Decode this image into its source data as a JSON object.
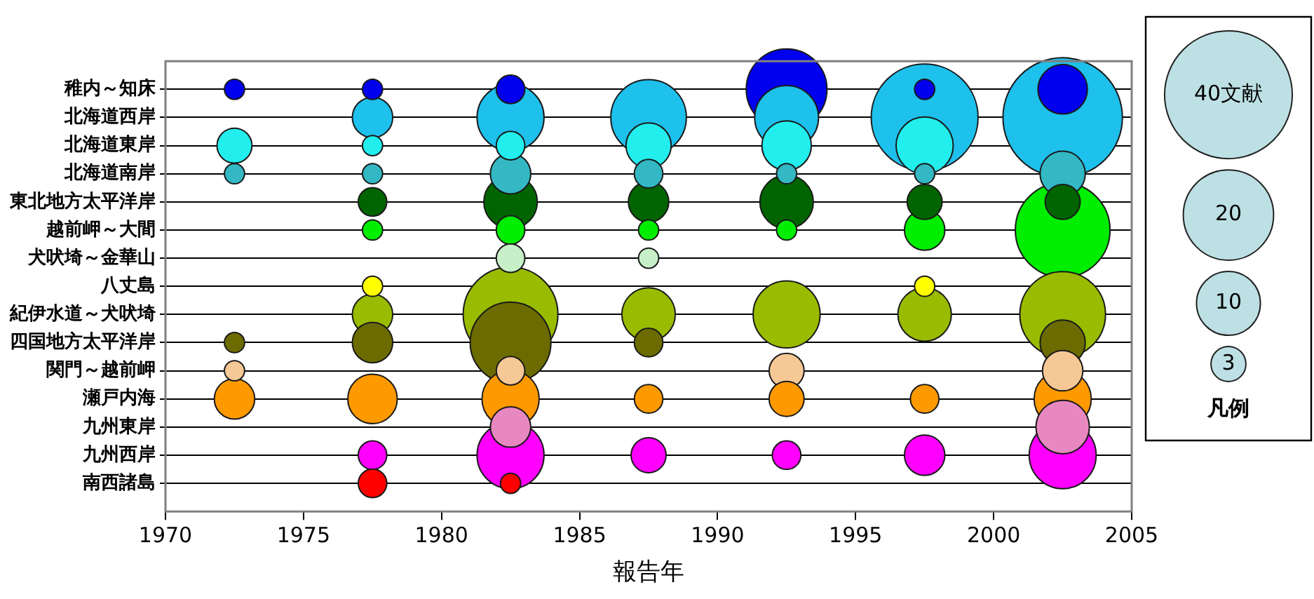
{
  "chart_data": {
    "type": "bubble",
    "orientation": "horizontal",
    "xlabel": "報告年",
    "legend_title": "凡例",
    "xlim": [
      1970,
      2005
    ],
    "xticks": [
      1970,
      1975,
      1980,
      1985,
      1990,
      1995,
      2000,
      2005
    ],
    "grid": "y",
    "size_legend": [
      {
        "value": 40,
        "label": "40文献"
      },
      20,
      10,
      3
    ],
    "categories": [
      "稚内～知床",
      "北海道西岸",
      "北海道東岸",
      "北海道南岸",
      "東北地方太平洋岸",
      "越前岬～大間",
      "犬吠埼～金華山",
      "八丈島",
      "紀伊水道～犬吠埼",
      "四国地方太平洋岸",
      "関門～越前岬",
      "瀬戸内海",
      "九州東岸",
      "九州西岸",
      "南西諸島"
    ],
    "series": [
      {
        "values": [
          1972.5,
          null,
          1972.5,
          1972.5,
          null,
          null,
          null,
          null,
          null,
          1972.5,
          1972.5,
          1972.5,
          null,
          null,
          null
        ],
        "sizes": [
          1,
          null,
          3,
          1,
          null,
          null,
          null,
          null,
          null,
          1,
          1,
          4,
          null,
          null,
          null
        ],
        "colors": [
          "#0000ee",
          null,
          "#22eeee",
          "#33b8c4",
          null,
          null,
          null,
          null,
          null,
          "#6b6b00",
          "#f5c896",
          "#ff9900",
          null,
          null,
          null
        ]
      },
      {
        "values": [
          1977.5,
          1977.5,
          1977.5,
          1977.5,
          1977.5,
          1977.5,
          null,
          1977.5,
          1977.5,
          1977.5,
          null,
          1977.5,
          null,
          1977.5,
          1977.5
        ],
        "sizes": [
          1,
          4,
          1,
          1,
          2,
          1,
          null,
          1,
          4,
          4,
          null,
          6,
          null,
          2,
          2
        ],
        "colors": [
          "#0000ee",
          "#1ec0ec",
          "#22eeee",
          "#33b8c4",
          "#006400",
          "#00ee00",
          null,
          "#ffff00",
          "#99bb00",
          "#6b6b00",
          null,
          "#ff9900",
          null,
          "#ff00ff",
          "#ff0000"
        ]
      },
      {
        "values": [
          1982.5,
          1982.5,
          1982.5,
          1982.5,
          1982.5,
          1982.5,
          1982.5,
          null,
          1982.5,
          1982.5,
          1982.5,
          1982.5,
          1982.5,
          1982.5,
          1982.5
        ],
        "sizes": [
          2,
          11,
          2,
          4,
          7,
          2,
          2,
          null,
          22,
          16,
          2,
          8,
          4,
          11,
          1
        ],
        "colors": [
          "#0000ee",
          "#1ec0ec",
          "#22eeee",
          "#33b8c4",
          "#006400",
          "#00ee00",
          "#c8f0c8",
          null,
          "#99bb00",
          "#6b6b00",
          "#f5c896",
          "#ff9900",
          "#e888c0",
          "#ff00ff",
          "#ff0000"
        ]
      },
      {
        "values": [
          null,
          1987.5,
          1987.5,
          1987.5,
          1987.5,
          1987.5,
          1987.5,
          null,
          1987.5,
          1987.5,
          null,
          1987.5,
          null,
          1987.5,
          null
        ],
        "sizes": [
          null,
          14,
          5,
          2,
          4,
          1,
          1,
          null,
          7,
          2,
          null,
          2,
          null,
          3,
          null
        ],
        "colors": [
          null,
          "#1ec0ec",
          "#22eeee",
          "#33b8c4",
          "#006400",
          "#00ee00",
          "#c8f0c8",
          null,
          "#99bb00",
          "#6b6b00",
          null,
          "#ff9900",
          null,
          "#ff00ff",
          null
        ]
      },
      {
        "values": [
          1992.5,
          1992.5,
          1992.5,
          1992.5,
          1992.5,
          1992.5,
          null,
          null,
          1992.5,
          null,
          1992.5,
          1992.5,
          null,
          1992.5,
          null
        ],
        "sizes": [
          16,
          10,
          6,
          1,
          7,
          1,
          null,
          null,
          11,
          null,
          3,
          3,
          null,
          2,
          null
        ],
        "colors": [
          "#0000ee",
          "#1ec0ec",
          "#22eeee",
          "#33b8c4",
          "#006400",
          "#00ee00",
          null,
          null,
          "#99bb00",
          null,
          "#f5c896",
          "#ff9900",
          null,
          "#ff00ff",
          null
        ]
      },
      {
        "values": [
          1997.5,
          1997.5,
          1997.5,
          1997.5,
          1997.5,
          1997.5,
          null,
          1997.5,
          1997.5,
          null,
          null,
          1997.5,
          null,
          1997.5,
          null
        ],
        "sizes": [
          1,
          28,
          8,
          1,
          3,
          4,
          null,
          1,
          7,
          null,
          null,
          2,
          null,
          4,
          null
        ],
        "colors": [
          "#0000ee",
          "#1ec0ec",
          "#22eeee",
          "#33b8c4",
          "#006400",
          "#00ee00",
          null,
          "#ffff00",
          "#99bb00",
          null,
          null,
          "#ff9900",
          null,
          "#ff00ff",
          null
        ]
      },
      {
        "values": [
          2002.5,
          2002.5,
          null,
          2002.5,
          2002.5,
          2002.5,
          null,
          null,
          2002.5,
          2002.5,
          2002.5,
          2002.5,
          2002.5,
          2002.5,
          null
        ],
        "sizes": [
          6,
          35,
          null,
          5,
          3,
          22,
          null,
          null,
          18,
          5,
          4,
          8,
          7,
          11,
          null
        ],
        "colors": [
          "#0000ee",
          "#1ec0ec",
          null,
          "#33b8c4",
          "#006400",
          "#00ee00",
          null,
          null,
          "#99bb00",
          "#6b6b00",
          "#f5c896",
          "#ff9900",
          "#e888c0",
          "#ff00ff",
          null
        ]
      }
    ]
  }
}
